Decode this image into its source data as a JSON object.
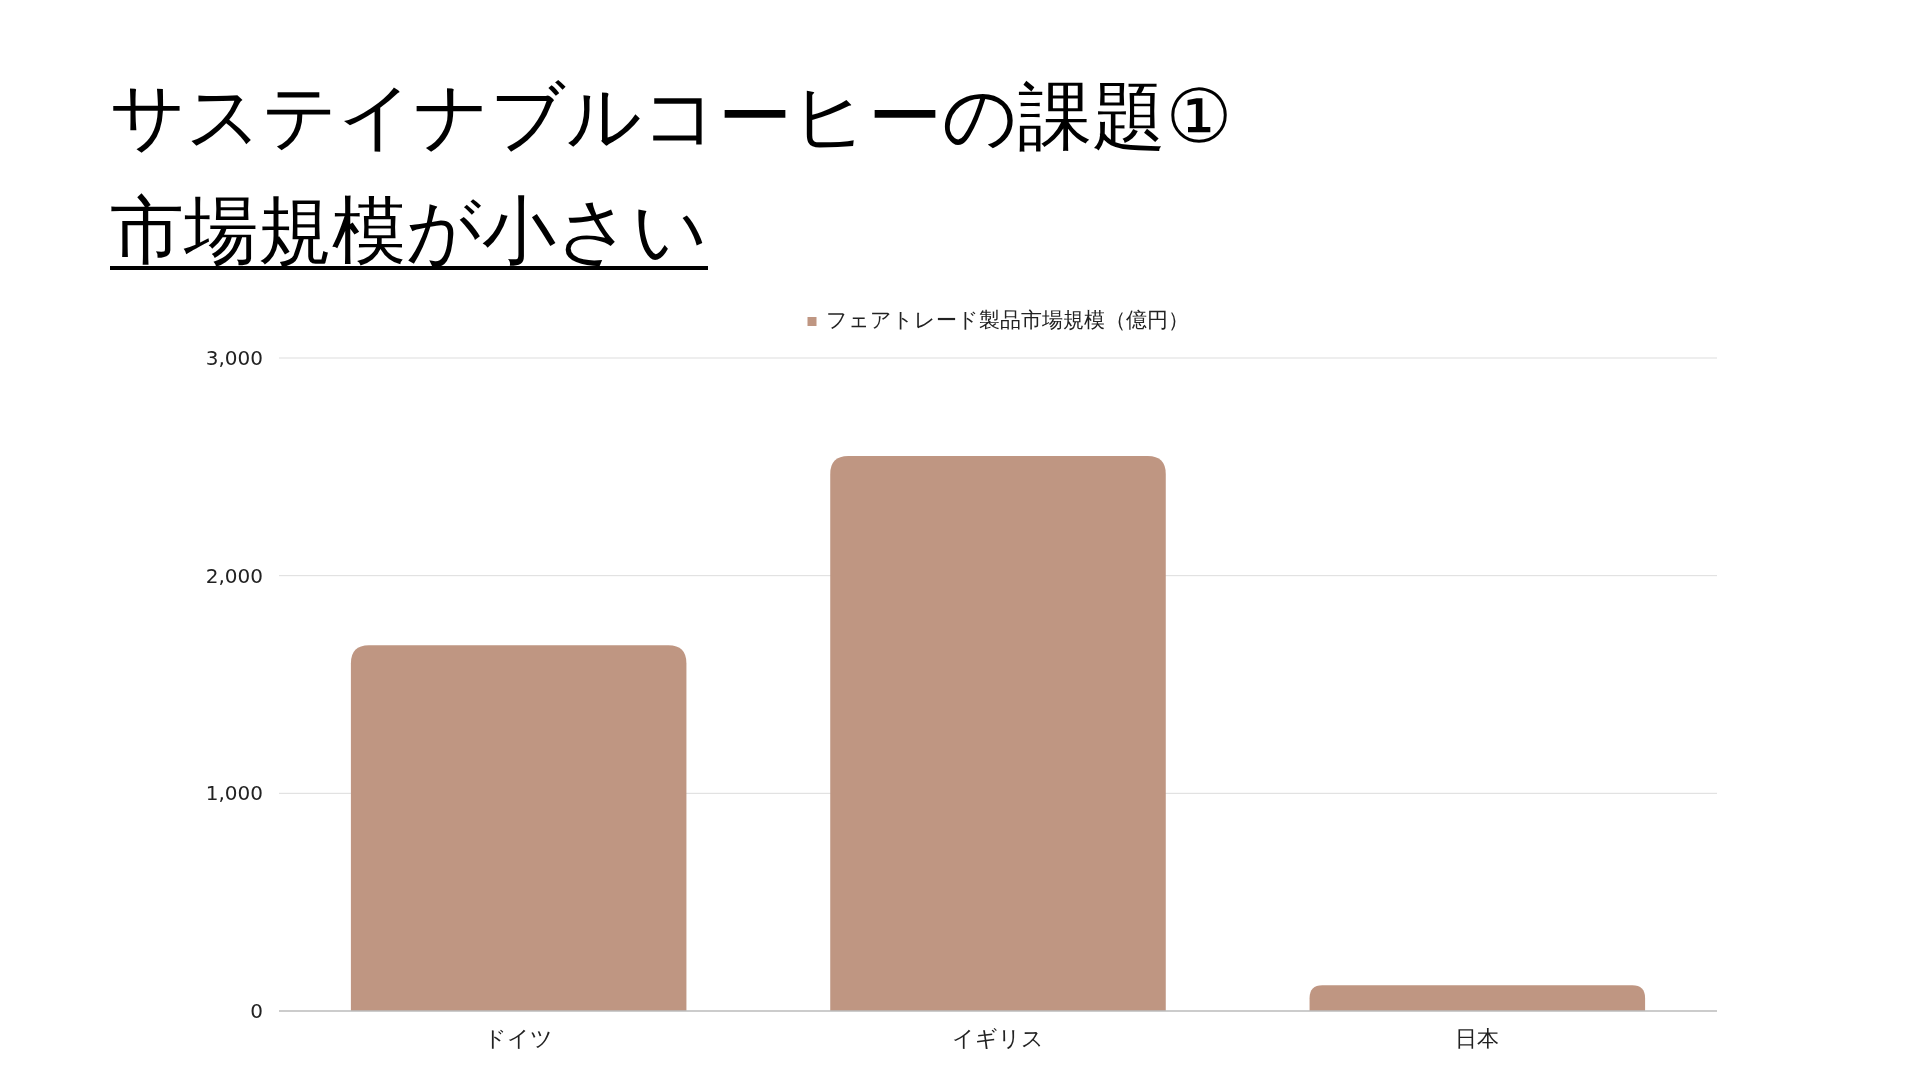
{
  "chart_data": {
    "type": "bar",
    "title": "サステイナブルコーヒーの課題①",
    "subtitle": "市場規模が小さい",
    "categories": [
      "ドイツ",
      "イギリス",
      "日本"
    ],
    "series": [
      {
        "name": "フェアトレード製品市場規模（億円）",
        "color": "#bf9682",
        "values": [
          1680,
          2550,
          118
        ]
      }
    ],
    "ylim": [
      0,
      3000
    ],
    "yticks": [
      0,
      {
        "value": 1000,
        "label": "1,000"
      },
      {
        "value": 2000,
        "label": "2,000"
      },
      {
        "value": 3000,
        "label": "3,000"
      }
    ],
    "grid": "y",
    "legend": "top"
  }
}
